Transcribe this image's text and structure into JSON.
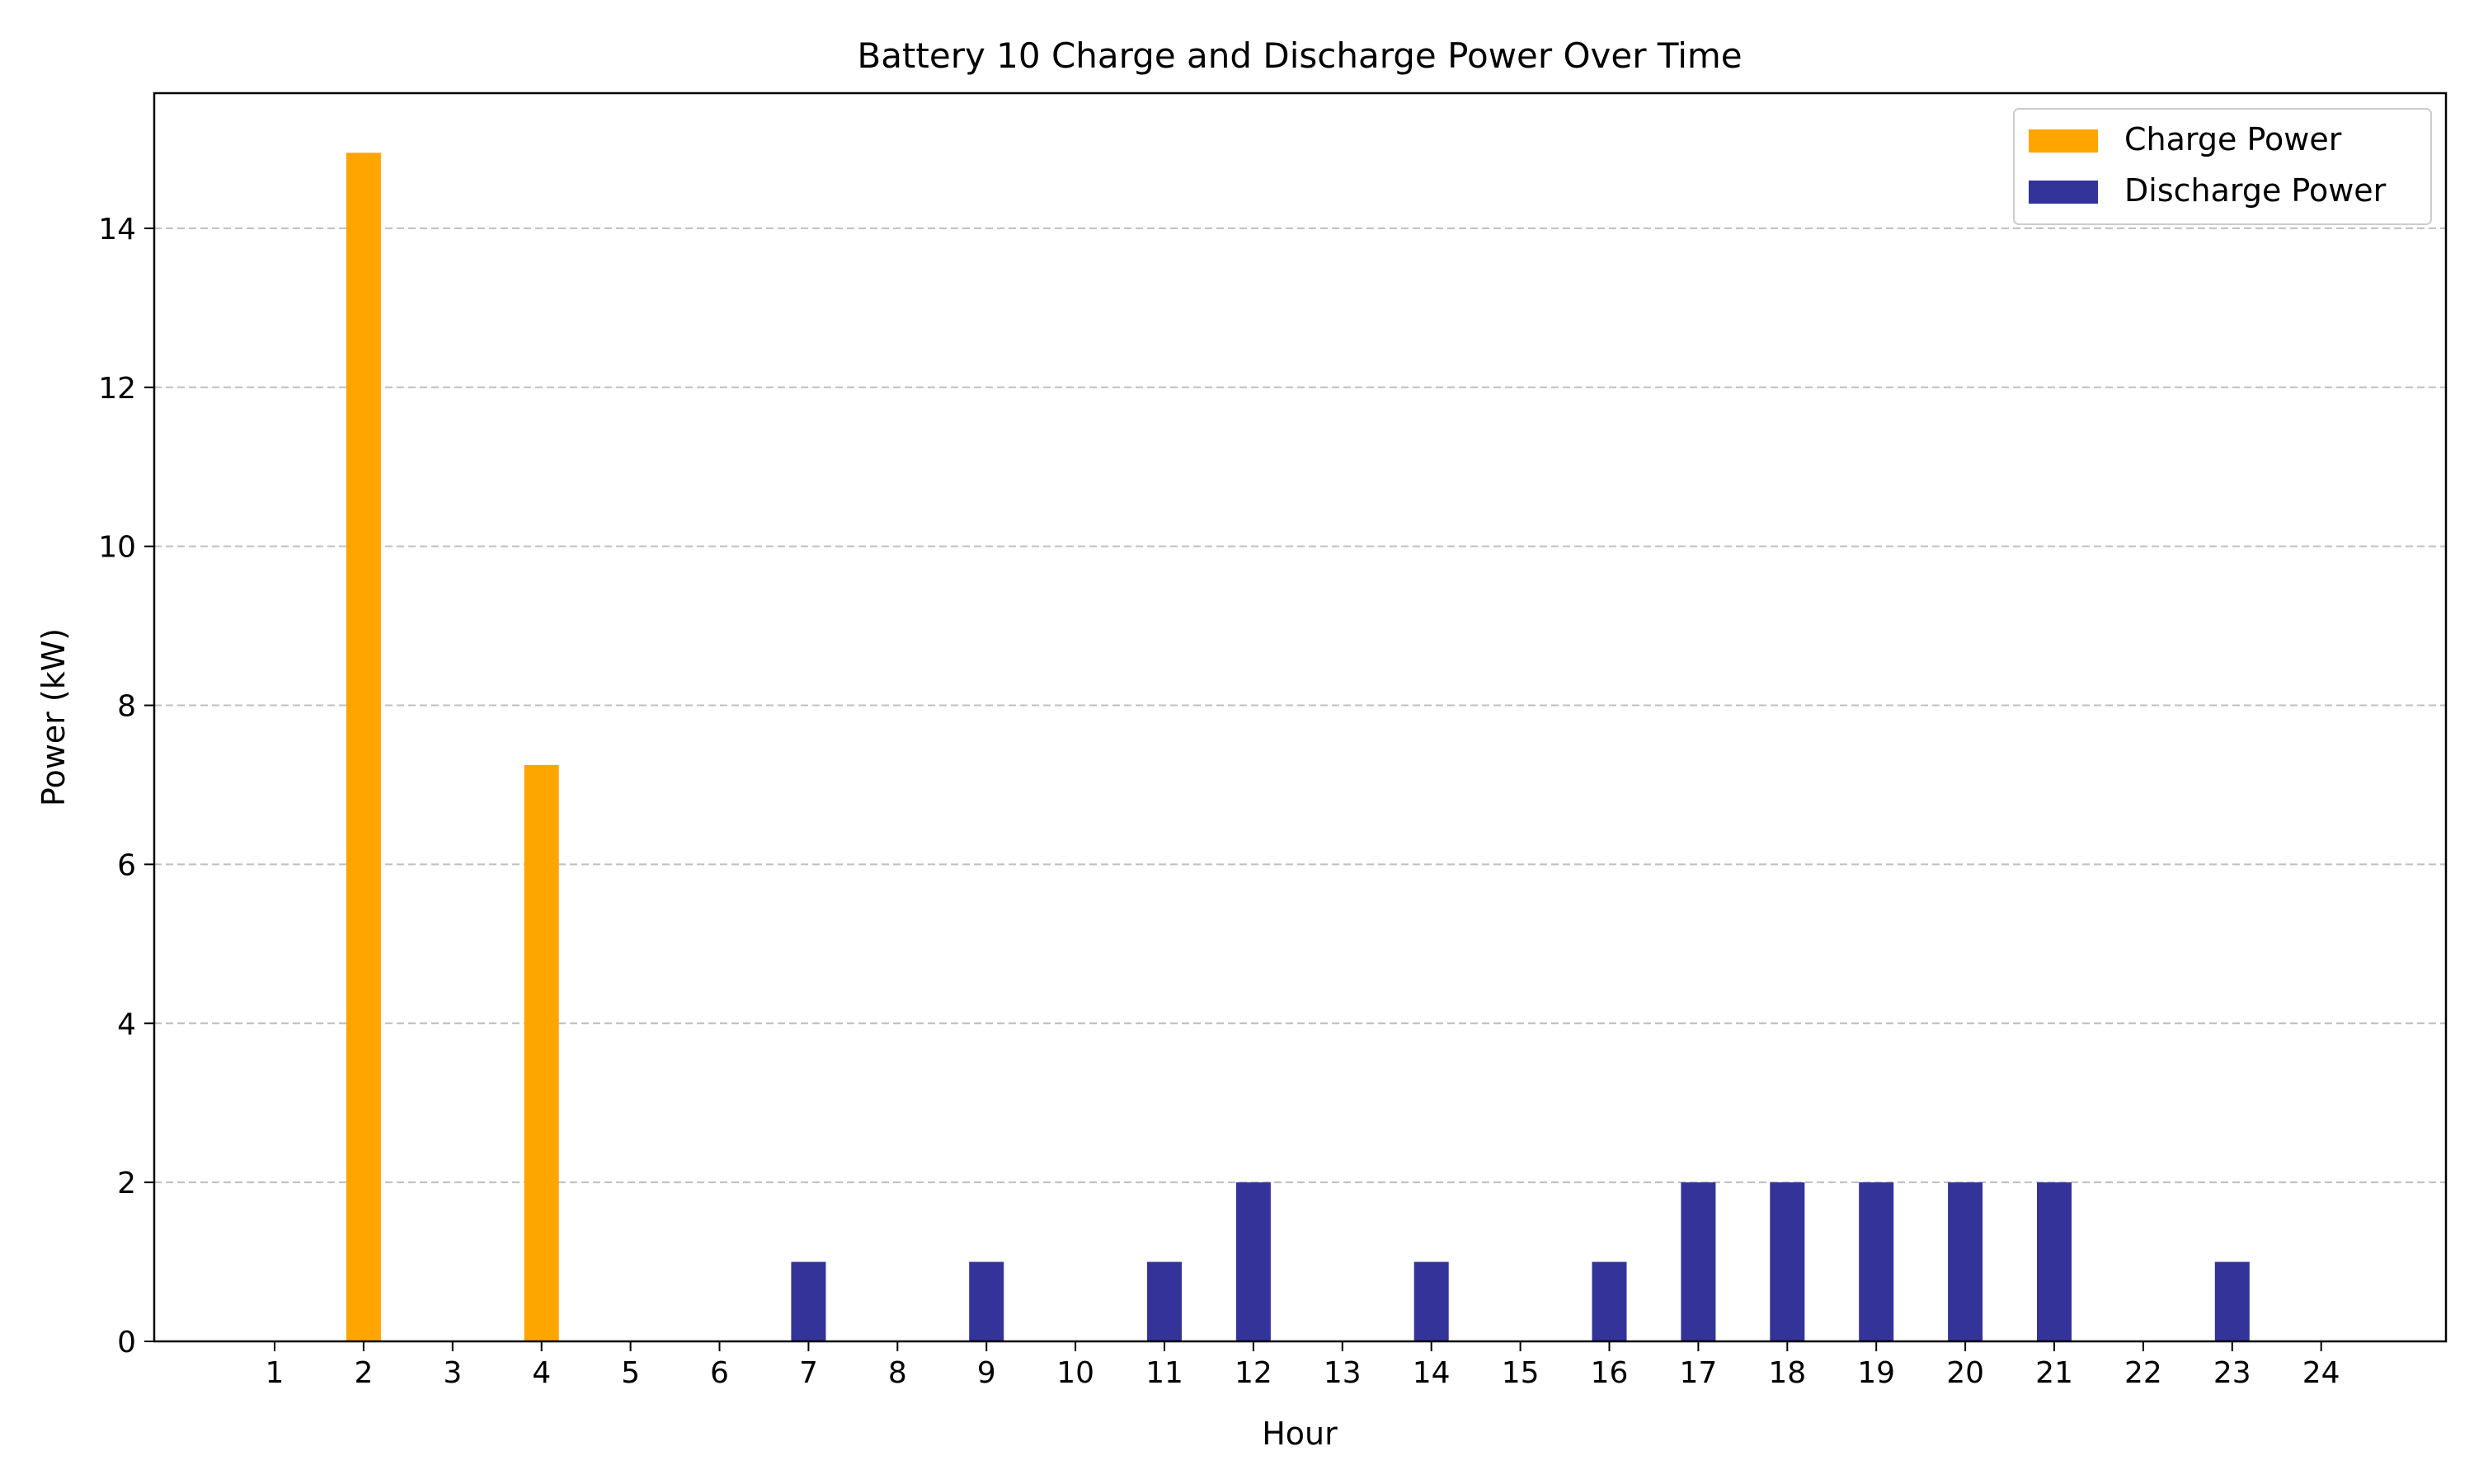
{
  "chart_data": {
    "type": "bar",
    "title": "Battery 10 Charge and Discharge Power Over Time",
    "xlabel": "Hour",
    "ylabel": "Power (kW)",
    "categories": [
      "1",
      "2",
      "3",
      "4",
      "5",
      "6",
      "7",
      "8",
      "9",
      "10",
      "11",
      "12",
      "13",
      "14",
      "15",
      "16",
      "17",
      "18",
      "19",
      "20",
      "21",
      "22",
      "23",
      "24"
    ],
    "yticks": [
      "0",
      "2",
      "4",
      "6",
      "8",
      "10",
      "12",
      "14"
    ],
    "ylim": [
      0,
      15.7
    ],
    "grid": "horizontal dashed",
    "legend_position": "top-right",
    "series": [
      {
        "name": "Charge Power",
        "color": "#FFA500",
        "values": [
          0,
          14.95,
          0,
          7.25,
          0,
          0,
          0,
          0,
          0,
          0,
          0,
          0,
          0,
          0,
          0,
          0,
          0,
          0,
          0,
          0,
          0,
          0,
          0,
          0
        ]
      },
      {
        "name": "Discharge Power",
        "color": "#333399",
        "values": [
          0,
          0,
          0,
          0,
          0,
          0,
          1,
          0,
          1,
          0,
          1,
          2,
          0,
          1,
          0,
          1,
          2,
          2,
          2,
          2,
          2,
          0,
          1,
          0
        ]
      }
    ]
  }
}
